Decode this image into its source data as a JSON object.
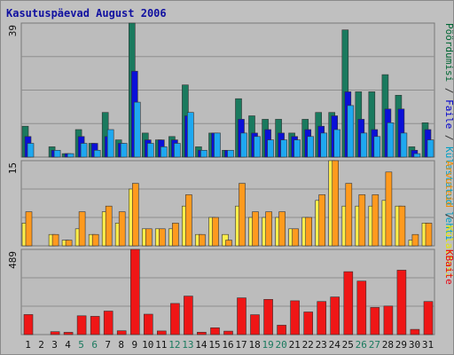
{
  "chart_data": {
    "type": "bar",
    "title": "Kasutuspäevad August 2006",
    "categories": [
      "1",
      "2",
      "3",
      "4",
      "5",
      "6",
      "7",
      "8",
      "9",
      "10",
      "11",
      "12",
      "13",
      "14",
      "15",
      "16",
      "17",
      "18",
      "19",
      "20",
      "21",
      "22",
      "23",
      "24",
      "25",
      "26",
      "27",
      "28",
      "29",
      "30",
      "31"
    ],
    "weekend_days": [
      "5",
      "6",
      "12",
      "13",
      "19",
      "20",
      "26",
      "27"
    ],
    "panels": [
      {
        "id": "top",
        "scale_max_label": "39",
        "ymax": 39,
        "right_labels": [
          {
            "text": "Pöördumisi",
            "color": "#006633"
          },
          {
            "text": " / ",
            "color": "#333333"
          },
          {
            "text": "Faile",
            "color": "#0000cc"
          },
          {
            "text": " / ",
            "color": "#333333"
          },
          {
            "text": "Külastatud lehti",
            "color": "#009ec4"
          }
        ],
        "series": [
          {
            "name": "Pöördumisi",
            "color": "#1a7a5e",
            "values": [
              9,
              0,
              3,
              1,
              8,
              4,
              13,
              5,
              39,
              7,
              5,
              6,
              21,
              3,
              7,
              2,
              17,
              12,
              11,
              11,
              7,
              11,
              13,
              13,
              37,
              19,
              19,
              24,
              18,
              3,
              10
            ]
          },
          {
            "name": "Faile",
            "color": "#0a10d8",
            "values": [
              6,
              0,
              2,
              1,
              6,
              4,
              6,
              4,
              25,
              5,
              5,
              5,
              12,
              2,
              7,
              2,
              11,
              7,
              8,
              7,
              6,
              8,
              9,
              12,
              19,
              11,
              8,
              14,
              14,
              2,
              8
            ]
          },
          {
            "name": "Külastatud lehti",
            "color": "#1ea8f0",
            "values": [
              4,
              0,
              2,
              1,
              4,
              2,
              8,
              4,
              16,
              4,
              3,
              4,
              13,
              2,
              7,
              2,
              7,
              6,
              5,
              5,
              5,
              6,
              7,
              8,
              15,
              7,
              6,
              10,
              7,
              1,
              5
            ]
          }
        ]
      },
      {
        "id": "middle",
        "scale_max_label": "15",
        "ymax": 15,
        "right_labels": [
          {
            "text": "Arvuteid",
            "color": "#f28c00"
          },
          {
            "text": " / ",
            "color": "#333333"
          },
          {
            "text": "Külastusi",
            "color": "#e6e600"
          }
        ],
        "series": [
          {
            "name": "Külastusi",
            "color": "#ffee4a",
            "values": [
              4,
              0,
              2,
              1,
              3,
              2,
              6,
              4,
              10,
              3,
              3,
              3,
              7,
              2,
              5,
              2,
              7,
              5,
              5,
              5,
              3,
              5,
              8,
              15,
              7,
              7,
              7,
              8,
              7,
              1,
              4
            ]
          },
          {
            "name": "Arvuteid",
            "color": "#ff9a1e",
            "values": [
              6,
              0,
              2,
              1,
              6,
              2,
              7,
              6,
              11,
              3,
              3,
              4,
              9,
              2,
              5,
              1,
              11,
              6,
              6,
              6,
              3,
              5,
              9,
              15,
              11,
              9,
              9,
              13,
              7,
              2,
              4
            ]
          }
        ]
      },
      {
        "id": "bottom",
        "scale_max_label": "489",
        "ymax": 489,
        "right_labels": [
          {
            "text": "KBaite",
            "color": "#e8000f"
          }
        ],
        "series": [
          {
            "name": "KBaite",
            "color": "#ef1616",
            "values": [
              115,
              0,
              17,
              13,
              108,
              105,
              135,
              22,
              489,
              117,
              21,
              179,
              221,
              14,
              39,
              20,
              211,
              114,
              202,
              54,
              194,
              130,
              190,
              216,
              361,
              307,
              156,
              164,
              370,
              30,
              190
            ]
          }
        ]
      }
    ]
  }
}
